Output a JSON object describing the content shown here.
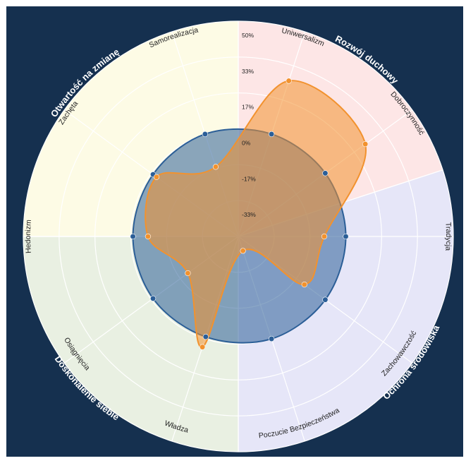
{
  "chart_data": {
    "type": "radar",
    "tick_labels": [
      "50%",
      "33%",
      "17%",
      "0%",
      "-17%",
      "-33%"
    ],
    "rlim": [
      -50,
      50
    ],
    "categories": [
      "Uniwersalizm",
      "Dobroczynność",
      "Tradycja",
      "Zachowawczość",
      "Poczucie Bezpieczeństwa",
      "Władza",
      "Osiągnięcia",
      "Hedonizm",
      "Zachęta",
      "Samorealizacja"
    ],
    "series": [
      {
        "color": "#2b5e97",
        "values": [
          0,
          0,
          0,
          0,
          0,
          -1,
          -1,
          -1,
          -1,
          0
        ]
      },
      {
        "color": "#f2922e",
        "values": [
          26,
          23,
          -10,
          -12,
          -43,
          4,
          -21,
          -8,
          -3,
          -16
        ]
      }
    ],
    "groups": [
      "Rozwój duchowy",
      "Ochrona środowiska",
      "Doskonalenie siebie",
      "Otwartość na zmianę"
    ],
    "group_colors": [
      "#fde6e6",
      "#e6e6f8",
      "#e9f0e2",
      "#fdfbe5"
    ],
    "background": "#15304f"
  }
}
